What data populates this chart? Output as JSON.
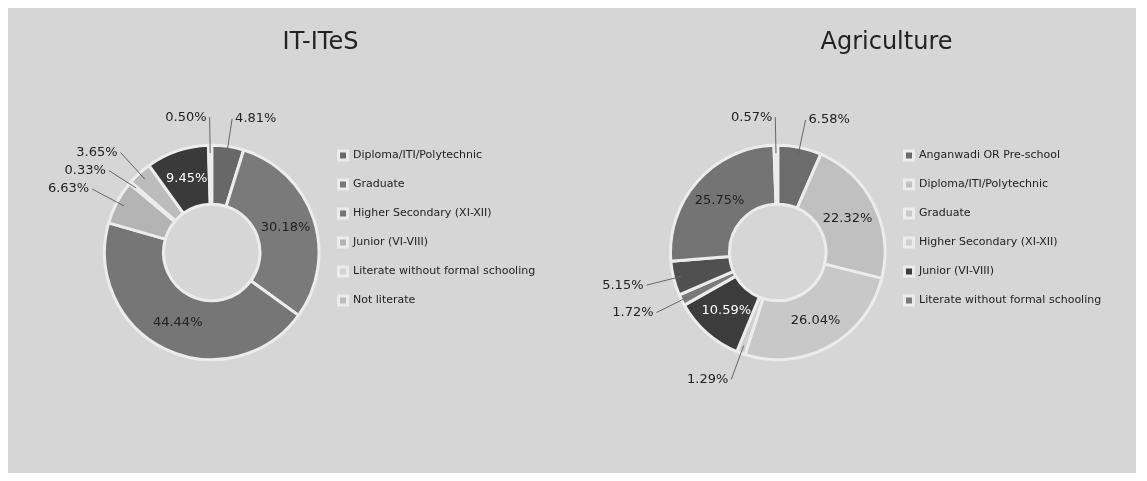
{
  "chart_data": [
    {
      "type": "donut",
      "title": "IT-ITeS",
      "categories": [
        "Diploma/ITI/Polytechnic",
        "Graduate",
        "Higher Secondary (XI-XII)",
        "Junior (VI-VIII)",
        "Literate without formal schooling",
        "Not literate",
        null,
        null
      ],
      "values": [
        4.81,
        30.18,
        44.44,
        6.63,
        0.33,
        3.65,
        9.45,
        0.5
      ],
      "value_labels": [
        "4.81%",
        "30.18%",
        "44.44%",
        "6.63%",
        "0.33%",
        "3.65%",
        "9.45%",
        "0.50%"
      ],
      "colors": [
        "#686868",
        "#7a7a7a",
        "#767676",
        "#b4b4b4",
        "#d2d2d2",
        "#bcbcbc",
        "#3a3a3a",
        "#e0e0e0"
      ],
      "legend": "right"
    },
    {
      "type": "donut",
      "title": "Agriculture",
      "categories": [
        "Anganwadi OR Pre-school",
        "Diploma/ITI/Polytechnic",
        "Graduate",
        "Higher Secondary (XI-XII)",
        "Junior (VI-VIII)",
        "Literate without formal schooling",
        null,
        null,
        null
      ],
      "values": [
        6.58,
        22.32,
        26.04,
        1.29,
        10.59,
        1.72,
        5.15,
        25.75,
        0.57
      ],
      "value_labels": [
        "6.58%",
        "22.32%",
        "26.04%",
        "1.29%",
        "10.59%",
        "1.72%",
        "5.15%",
        "25.75%",
        "0.57%"
      ],
      "colors": [
        "#6c6c6c",
        "#c0c0c0",
        "#c8c8c8",
        "#cfcfcf",
        "#3c3c3c",
        "#7a7a7a",
        "#505050",
        "#747474",
        "#e0e0e0"
      ],
      "legend": "right"
    }
  ]
}
